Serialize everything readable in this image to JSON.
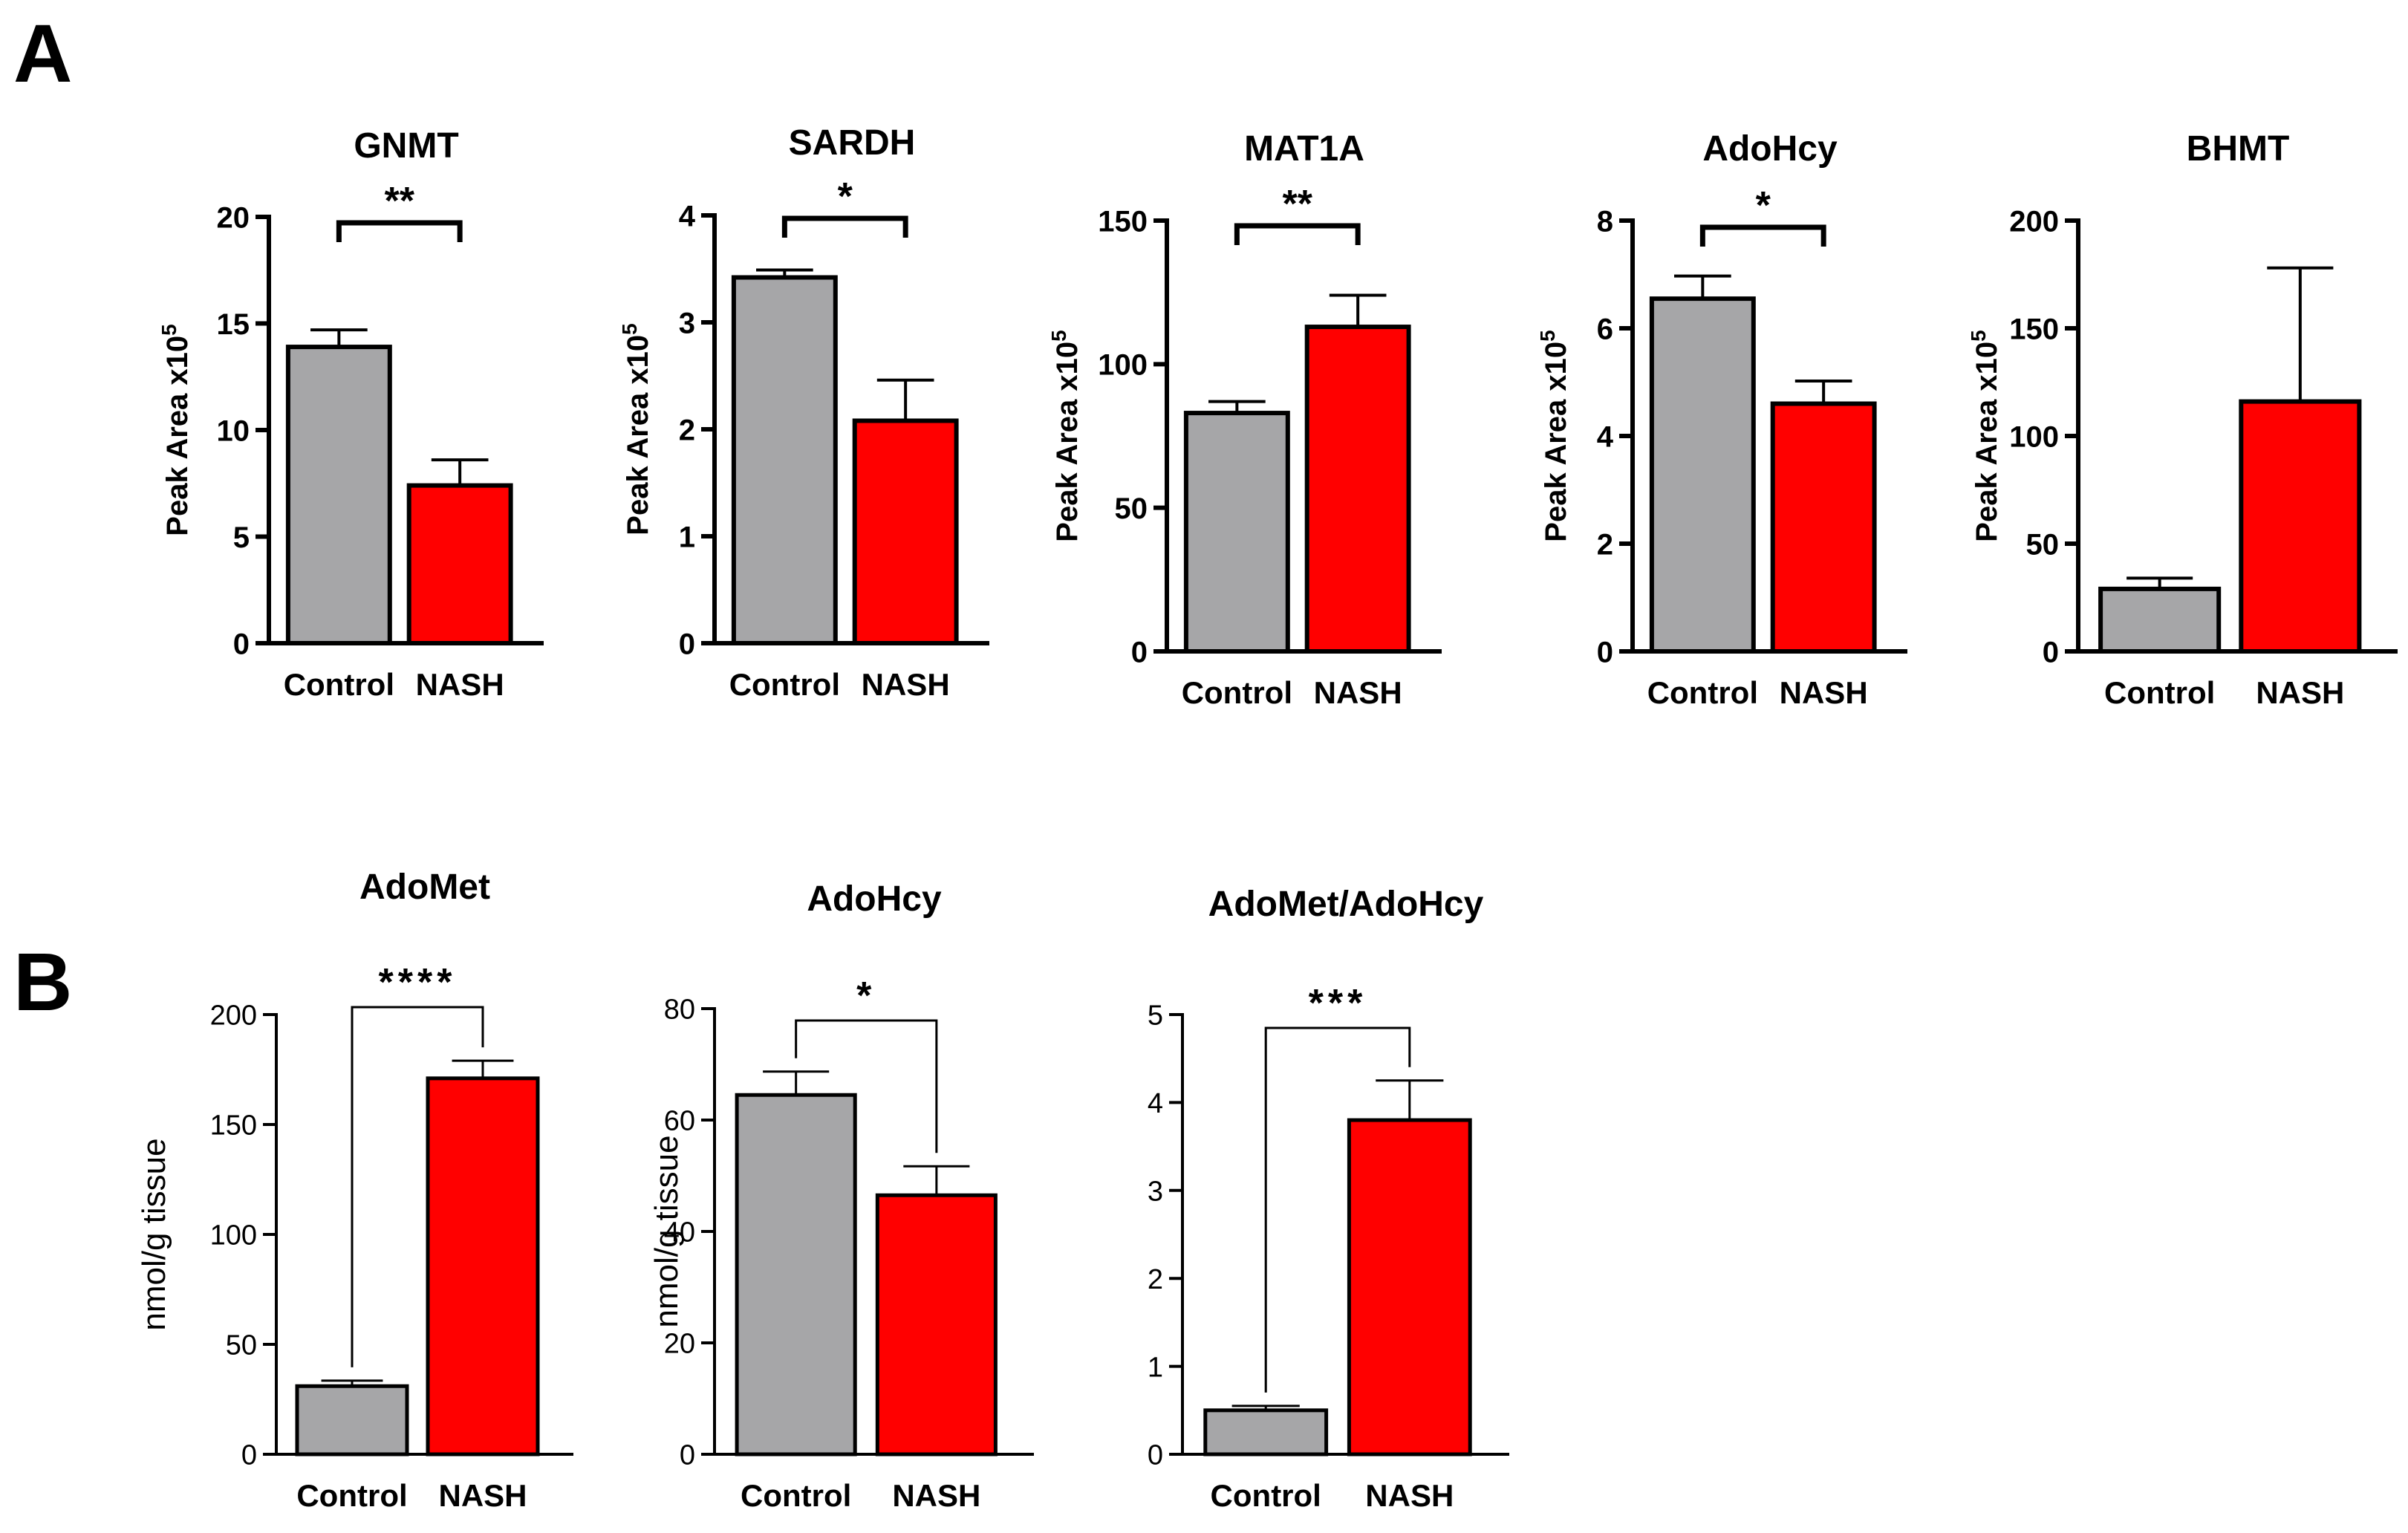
{
  "panels": [
    {
      "letter": "A"
    },
    {
      "letter": "B"
    }
  ],
  "colors": {
    "control": "#a6a6a8",
    "nash": "#ff0000",
    "axis": "#000000"
  },
  "chart_data": [
    {
      "type": "bar",
      "panel": "A",
      "style": "bold",
      "title": "GNMT",
      "ylabel": "Peak Area x10",
      "ylabel_sup": "5",
      "categories": [
        "Control",
        "NASH"
      ],
      "values": [
        13.9,
        7.4
      ],
      "errors": [
        0.8,
        1.2
      ],
      "ylim": [
        0,
        20
      ],
      "yticks": [
        "0",
        "5",
        "10",
        "15",
        "20"
      ],
      "significance": "**",
      "sig_style": "bracket"
    },
    {
      "type": "bar",
      "panel": "A",
      "style": "bold",
      "title": "SARDH",
      "ylabel": "Peak Area x10",
      "ylabel_sup": "5",
      "categories": [
        "Control",
        "NASH"
      ],
      "values": [
        3.42,
        2.08
      ],
      "errors": [
        0.07,
        0.38
      ],
      "ylim": [
        0,
        4
      ],
      "yticks": [
        "0",
        "1",
        "2",
        "3",
        "4"
      ],
      "significance": "*",
      "sig_style": "bracket"
    },
    {
      "type": "bar",
      "panel": "A",
      "style": "bold",
      "title": "MAT1A",
      "ylabel": "Peak Area x10",
      "ylabel_sup": "5",
      "categories": [
        "Control",
        "NASH"
      ],
      "values": [
        83,
        113
      ],
      "errors": [
        4,
        11
      ],
      "ylim": [
        0,
        150
      ],
      "yticks": [
        "0",
        "50",
        "100",
        "150"
      ],
      "significance": "**",
      "sig_style": "bracket"
    },
    {
      "type": "bar",
      "panel": "A",
      "style": "bold",
      "title": "AdoHcy",
      "ylabel": "Peak Area x10",
      "ylabel_sup": "5",
      "categories": [
        "Control",
        "NASH"
      ],
      "values": [
        6.55,
        4.6
      ],
      "errors": [
        0.42,
        0.42
      ],
      "ylim": [
        0,
        8
      ],
      "yticks": [
        "0",
        "2",
        "4",
        "6",
        "8"
      ],
      "significance": "*",
      "sig_style": "bracket"
    },
    {
      "type": "bar",
      "panel": "A",
      "style": "bold",
      "title": "BHMT",
      "ylabel": "Peak Area x10",
      "ylabel_sup": "5",
      "categories": [
        "Control",
        "NASH"
      ],
      "values": [
        29,
        116
      ],
      "errors": [
        5,
        62
      ],
      "ylim": [
        0,
        200
      ],
      "yticks": [
        "0",
        "50",
        "100",
        "150",
        "200"
      ],
      "significance": "",
      "sig_style": "none"
    },
    {
      "type": "bar",
      "panel": "B",
      "style": "light",
      "title": "AdoMet",
      "ylabel": "nmol/g tissue",
      "ylabel_sup": "",
      "categories": [
        "Control",
        "NASH"
      ],
      "values": [
        31,
        171
      ],
      "errors": [
        2.5,
        8
      ],
      "ylim": [
        0,
        200
      ],
      "yticks": [
        "0",
        "50",
        "100",
        "150",
        "200"
      ],
      "significance": "****",
      "sig_style": "line"
    },
    {
      "type": "bar",
      "panel": "B",
      "style": "light",
      "title": "AdoHcy",
      "ylabel": "nmol/g tissue",
      "ylabel_sup": "",
      "categories": [
        "Control",
        "NASH"
      ],
      "values": [
        64.5,
        46.5
      ],
      "errors": [
        4.2,
        5.2
      ],
      "ylim": [
        0,
        80
      ],
      "yticks": [
        "0",
        "20",
        "40",
        "60",
        "80"
      ],
      "significance": "*",
      "sig_style": "line"
    },
    {
      "type": "bar",
      "panel": "B",
      "style": "light",
      "title": "AdoMet/AdoHcy",
      "ylabel": "",
      "ylabel_sup": "",
      "categories": [
        "Control",
        "NASH"
      ],
      "values": [
        0.5,
        3.8
      ],
      "errors": [
        0.05,
        0.45
      ],
      "ylim": [
        0,
        5
      ],
      "yticks": [
        "0",
        "1",
        "2",
        "3",
        "4",
        "5"
      ],
      "significance": "***",
      "sig_style": "line"
    }
  ]
}
